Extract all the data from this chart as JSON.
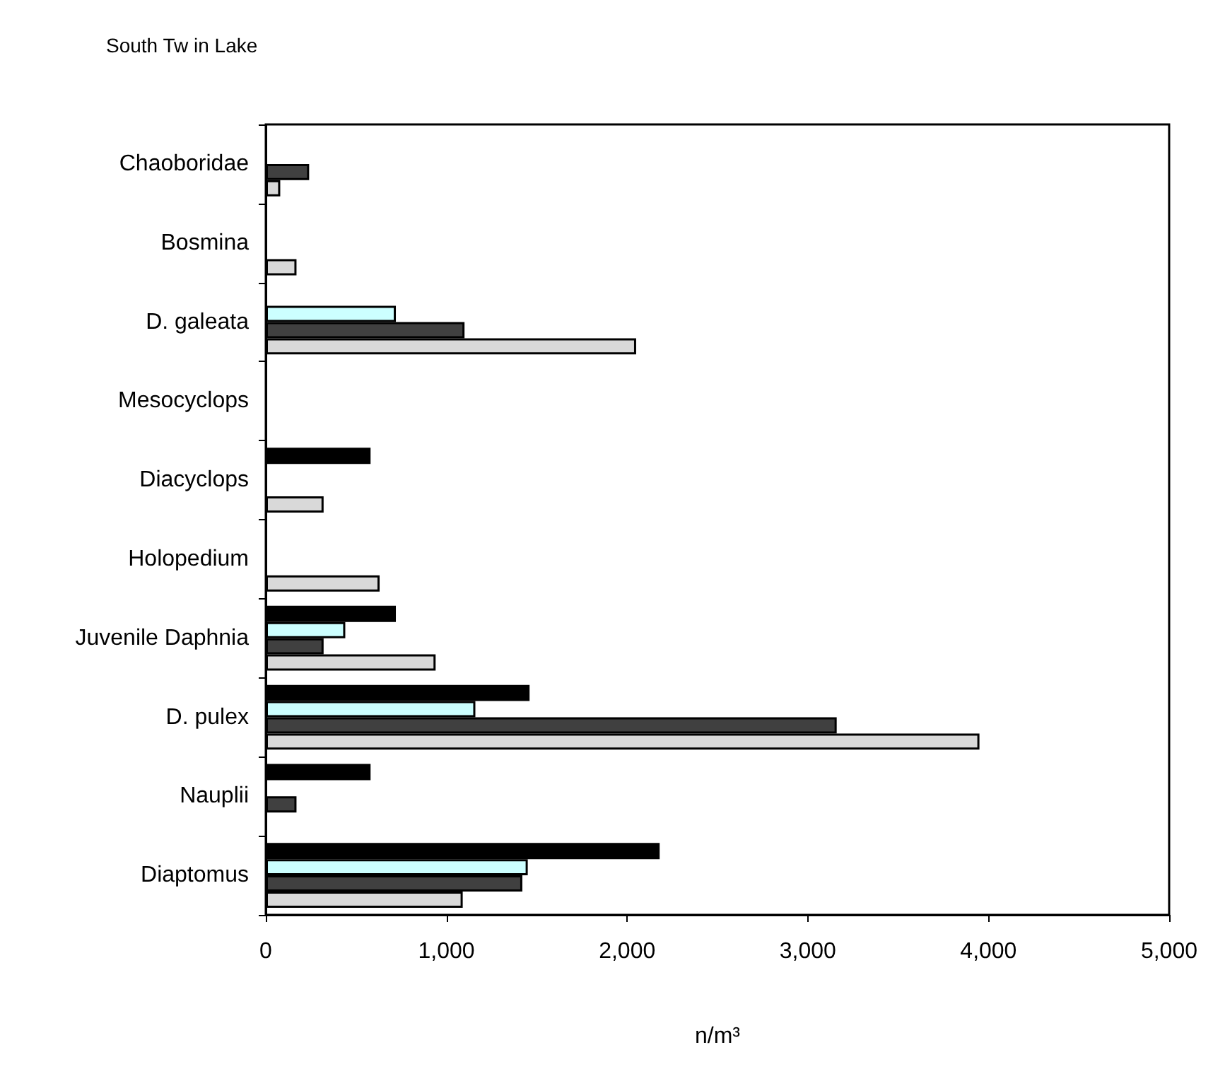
{
  "chart_data": {
    "type": "bar",
    "orientation": "horizontal",
    "title": "South Tw in Lake",
    "xlabel": "n/m³",
    "categories": [
      "Chaoboridae",
      "Bosmina",
      "D. galeata",
      "Mesocyclops",
      "Diacyclops",
      "Holopedium",
      "Juvenile Daphnia",
      "D. pulex",
      "Nauplii",
      "Diaptomus"
    ],
    "series": [
      {
        "color": "#000000",
        "values": [
          null,
          null,
          null,
          null,
          580,
          null,
          720,
          1460,
          580,
          2180
        ]
      },
      {
        "color": "#ccffff",
        "values": [
          null,
          null,
          720,
          null,
          null,
          null,
          440,
          1160,
          null,
          1450
        ]
      },
      {
        "color": "#404040",
        "values": [
          240,
          null,
          1100,
          null,
          null,
          null,
          320,
          3160,
          170,
          1420
        ]
      },
      {
        "color": "#d9d9d9",
        "values": [
          80,
          170,
          2050,
          null,
          320,
          630,
          940,
          3950,
          null,
          1090
        ]
      }
    ],
    "xlim": [
      0,
      5000
    ],
    "xticks": [
      {
        "value": 0,
        "label": "0"
      },
      {
        "value": 1000,
        "label": "1,000"
      },
      {
        "value": 2000,
        "label": "2,000"
      },
      {
        "value": 3000,
        "label": "3,000"
      },
      {
        "value": 4000,
        "label": "4,000"
      },
      {
        "value": 5000,
        "label": "5,000"
      }
    ],
    "grid": false
  }
}
